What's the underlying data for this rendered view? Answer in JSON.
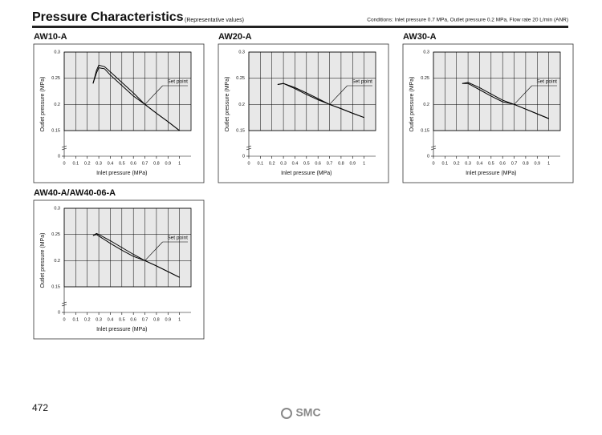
{
  "page": {
    "title": "Pressure Characteristics",
    "subtitle": "(Representative values)",
    "conditions": "Conditions: Inlet pressure 0.7 MPa, Outlet pressure 0.2 MPa, Flow rate 20 L/min (ANR)",
    "page_number": "472",
    "logo": "SMC"
  },
  "chart_data": [
    {
      "type": "line",
      "title": "AW10-A",
      "xlabel": "Inlet pressure (MPa)",
      "ylabel": "Outlet pressure (MPa)",
      "xlim": [
        0,
        1.1
      ],
      "ylim": [
        0,
        0.3
      ],
      "xticks": [
        0,
        0.1,
        0.2,
        0.3,
        0.4,
        0.5,
        0.6,
        0.7,
        0.8,
        0.9,
        1
      ],
      "yticks": [
        0,
        0.15,
        0.2,
        0.25,
        0.3
      ],
      "grid": true,
      "x": [
        0.25,
        0.28,
        0.3,
        0.35,
        0.4,
        0.5,
        0.6,
        0.7,
        0.8,
        0.9,
        1.0
      ],
      "series": [
        {
          "color": "#000000",
          "values": [
            0.24,
            0.265,
            0.275,
            0.272,
            0.262,
            0.242,
            0.222,
            0.2,
            0.183,
            0.167,
            0.15
          ]
        },
        {
          "color": "#000000",
          "values": [
            0.24,
            0.26,
            0.27,
            0.268,
            0.256,
            0.236,
            0.216,
            0.2,
            0.183,
            0.167,
            0.15
          ]
        }
      ],
      "annotation": {
        "text": "Set point",
        "x": 0.7,
        "y": 0.2
      }
    },
    {
      "type": "line",
      "title": "AW20-A",
      "xlabel": "Inlet pressure (MPa)",
      "ylabel": "Outlet pressure (MPa)",
      "xlim": [
        0,
        1.1
      ],
      "ylim": [
        0,
        0.3
      ],
      "xticks": [
        0,
        0.1,
        0.2,
        0.3,
        0.4,
        0.5,
        0.6,
        0.7,
        0.8,
        0.9,
        1
      ],
      "yticks": [
        0,
        0.15,
        0.2,
        0.25,
        0.3
      ],
      "grid": true,
      "x": [
        0.25,
        0.3,
        0.4,
        0.5,
        0.6,
        0.7,
        0.8,
        0.9,
        1.0
      ],
      "series": [
        {
          "color": "#000000",
          "values": [
            0.238,
            0.24,
            0.232,
            0.222,
            0.211,
            0.2,
            0.192,
            0.183,
            0.175
          ]
        },
        {
          "color": "#000000",
          "values": [
            0.238,
            0.24,
            0.23,
            0.219,
            0.209,
            0.2,
            0.192,
            0.183,
            0.175
          ]
        }
      ],
      "annotation": {
        "text": "Set point",
        "x": 0.7,
        "y": 0.2
      }
    },
    {
      "type": "line",
      "title": "AW30-A",
      "xlabel": "Inlet pressure (MPa)",
      "ylabel": "Outlet pressure (MPa)",
      "xlim": [
        0,
        1.1
      ],
      "ylim": [
        0,
        0.3
      ],
      "xticks": [
        0,
        0.1,
        0.2,
        0.3,
        0.4,
        0.5,
        0.6,
        0.7,
        0.8,
        0.9,
        1
      ],
      "yticks": [
        0,
        0.15,
        0.2,
        0.25,
        0.3
      ],
      "grid": true,
      "x": [
        0.25,
        0.3,
        0.4,
        0.5,
        0.6,
        0.7,
        0.8,
        0.9,
        1.0
      ],
      "series": [
        {
          "color": "#000000",
          "values": [
            0.24,
            0.242,
            0.232,
            0.22,
            0.208,
            0.2,
            0.191,
            0.182,
            0.173
          ]
        },
        {
          "color": "#000000",
          "values": [
            0.24,
            0.24,
            0.228,
            0.216,
            0.205,
            0.2,
            0.191,
            0.182,
            0.173
          ]
        }
      ],
      "annotation": {
        "text": "Set point",
        "x": 0.7,
        "y": 0.2
      }
    },
    {
      "type": "line",
      "title": "AW40-A/AW40-06-A",
      "xlabel": "Inlet pressure (MPa)",
      "ylabel": "Outlet pressure (MPa)",
      "xlim": [
        0,
        1.1
      ],
      "ylim": [
        0,
        0.3
      ],
      "xticks": [
        0,
        0.1,
        0.2,
        0.3,
        0.4,
        0.5,
        0.6,
        0.7,
        0.8,
        0.9,
        1
      ],
      "yticks": [
        0,
        0.15,
        0.2,
        0.25,
        0.3
      ],
      "grid": true,
      "x": [
        0.25,
        0.28,
        0.3,
        0.4,
        0.5,
        0.6,
        0.7,
        0.8,
        0.9,
        1.0
      ],
      "series": [
        {
          "color": "#000000",
          "values": [
            0.248,
            0.252,
            0.25,
            0.238,
            0.225,
            0.212,
            0.2,
            0.19,
            0.179,
            0.168
          ]
        },
        {
          "color": "#000000",
          "values": [
            0.248,
            0.25,
            0.247,
            0.233,
            0.22,
            0.208,
            0.2,
            0.19,
            0.179,
            0.168
          ]
        }
      ],
      "annotation": {
        "text": "Set point",
        "x": 0.7,
        "y": 0.2
      }
    }
  ]
}
